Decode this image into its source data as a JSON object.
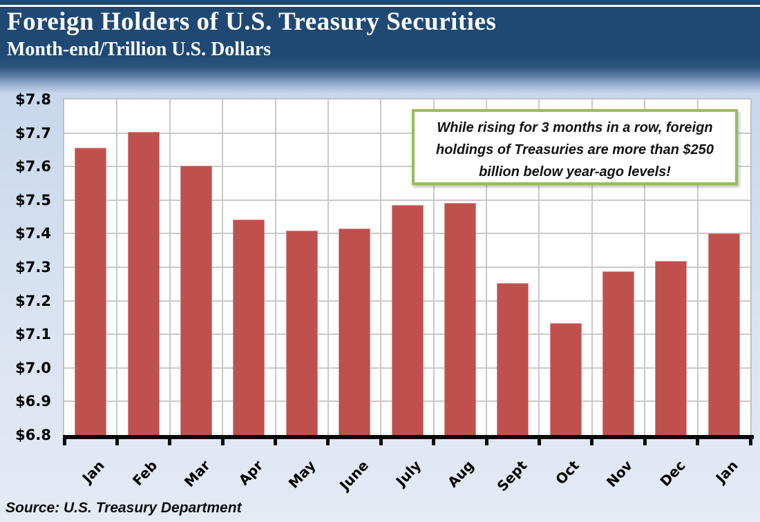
{
  "header": {
    "title": "Foreign Holders of U.S. Treasury Securities",
    "subtitle": "Month-end/Trillion U.S. Dollars"
  },
  "annotation": {
    "lines": [
      "While rising for 3 months in a row, foreign",
      "holdings of Treasuries are more than $250",
      "billion below year-ago levels!"
    ],
    "border_color": "#9BBB59"
  },
  "source": {
    "text": "Source: U.S. Treasury Department"
  },
  "colors": {
    "header_background": "#1F4973",
    "page_background": "#D5DFF0",
    "bar": "#C0504D",
    "gridline": "#C9C9C9",
    "axis": "#0A0A0A",
    "title_text": "#FDFDFD"
  },
  "chart_data": {
    "type": "bar",
    "title": "Foreign Holders of U.S. Treasury Securities",
    "subtitle": "Month-end/Trillion U.S. Dollars",
    "categories": [
      "Jan",
      "Feb",
      "Mar",
      "Apr",
      "May",
      "June",
      "July",
      "Aug",
      "Sept",
      "Oct",
      "Nov",
      "Dec",
      "Jan"
    ],
    "values": [
      7.655,
      7.703,
      7.603,
      7.443,
      7.41,
      7.415,
      7.485,
      7.491,
      7.252,
      7.133,
      7.287,
      7.318,
      7.401
    ],
    "xlabel": "",
    "ylabel": "Trillion U.S. Dollars",
    "ylim": [
      6.8,
      7.8
    ],
    "ytick_step": 0.1,
    "ytick_labels_top_to_bottom": [
      "$7.8",
      "$7.7",
      "$7.6",
      "$7.5",
      "$7.4",
      "$7.3",
      "$7.2",
      "$7.1",
      "$7.0",
      "$6.9",
      "$6.8"
    ],
    "grid": true,
    "legend": "none",
    "annotation": "While rising for 3 months in a row, foreign holdings of Treasuries are more than $250 billion below year-ago levels!",
    "source": "Source: U.S. Treasury Department"
  }
}
